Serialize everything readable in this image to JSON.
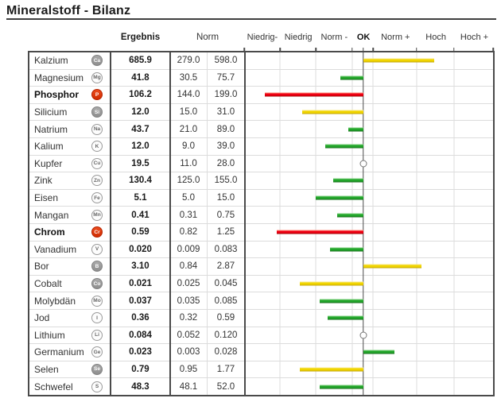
{
  "title": "Mineralstoff - Bilanz",
  "column_headers": {
    "ergebnis": "Ergebnis",
    "norm": "Norm"
  },
  "scale": {
    "labels": [
      {
        "label": "Niedrig-",
        "center_pct": 7.3,
        "bold": false
      },
      {
        "label": "Niedrig",
        "center_pct": 21.7,
        "bold": false
      },
      {
        "label": "Norm -",
        "center_pct": 36.1,
        "bold": false
      },
      {
        "label": "OK",
        "center_pct": 47.8,
        "bold": true
      },
      {
        "label": "Norm +",
        "center_pct": 60.6,
        "bold": false
      },
      {
        "label": "Hoch",
        "center_pct": 76.8,
        "bold": false
      },
      {
        "label": "Hoch +",
        "center_pct": 92.2,
        "bold": false
      }
    ],
    "gridline_pcts": [
      14.5,
      28.8,
      43.4,
      51.8,
      69.3,
      84.3
    ],
    "ok_line_pct": 47.8,
    "tick_pcts": [
      0,
      14.5,
      28.8,
      43.4,
      47.8,
      51.8,
      69.3,
      84.3,
      100
    ]
  },
  "colors": {
    "green": "#22a52a",
    "green_light": "#7fd07f",
    "green_dark": "#156e1a",
    "yellow": "#f0d400",
    "yellow_light": "#f8ea85",
    "yellow_dark": "#c2a500",
    "red": "#ee0013",
    "red_light": "#ff9382",
    "red_dark": "#a30000",
    "icon_gray": "#9c9c9c",
    "icon_red": "#df3a12",
    "ok_line": "#4d4d4d"
  },
  "rows": [
    {
      "name": "Kalzium",
      "symbol": "Ca",
      "icon": "gray",
      "bold": false,
      "result": "685.9",
      "norm_low": "279.0",
      "norm_high": "598.0"
    },
    {
      "name": "Magnesium",
      "symbol": "Mg",
      "icon": "outline",
      "bold": false,
      "result": "41.8",
      "norm_low": "30.5",
      "norm_high": "75.7"
    },
    {
      "name": "Phosphor",
      "symbol": "P",
      "icon": "red",
      "bold": true,
      "result": "106.2",
      "norm_low": "144.0",
      "norm_high": "199.0"
    },
    {
      "name": "Silicium",
      "symbol": "Si",
      "icon": "gray",
      "bold": false,
      "result": "12.0",
      "norm_low": "15.0",
      "norm_high": "31.0"
    },
    {
      "name": "Natrium",
      "symbol": "Na",
      "icon": "outline",
      "bold": false,
      "result": "43.7",
      "norm_low": "21.0",
      "norm_high": "89.0"
    },
    {
      "name": "Kalium",
      "symbol": "K",
      "icon": "outline",
      "bold": false,
      "result": "12.0",
      "norm_low": "9.0",
      "norm_high": "39.0"
    },
    {
      "name": "Kupfer",
      "symbol": "Cu",
      "icon": "outline",
      "bold": false,
      "result": "19.5",
      "norm_low": "11.0",
      "norm_high": "28.0"
    },
    {
      "name": "Zink",
      "symbol": "Zn",
      "icon": "outline",
      "bold": false,
      "result": "130.4",
      "norm_low": "125.0",
      "norm_high": "155.0"
    },
    {
      "name": "Eisen",
      "symbol": "Fe",
      "icon": "outline",
      "bold": false,
      "result": "5.1",
      "norm_low": "5.0",
      "norm_high": "15.0"
    },
    {
      "name": "Mangan",
      "symbol": "Mn",
      "icon": "outline",
      "bold": false,
      "result": "0.41",
      "norm_low": "0.31",
      "norm_high": "0.75"
    },
    {
      "name": "Chrom",
      "symbol": "Cr",
      "icon": "red",
      "bold": true,
      "result": "0.59",
      "norm_low": "0.82",
      "norm_high": "1.25"
    },
    {
      "name": "Vanadium",
      "symbol": "V",
      "icon": "outline",
      "bold": false,
      "result": "0.020",
      "norm_low": "0.009",
      "norm_high": "0.083"
    },
    {
      "name": "Bor",
      "symbol": "B",
      "icon": "gray",
      "bold": false,
      "result": "3.10",
      "norm_low": "0.84",
      "norm_high": "2.87"
    },
    {
      "name": "Cobalt",
      "symbol": "Co",
      "icon": "gray",
      "bold": false,
      "result": "0.021",
      "norm_low": "0.025",
      "norm_high": "0.045"
    },
    {
      "name": "Molybdän",
      "symbol": "Mo",
      "icon": "outline",
      "bold": false,
      "result": "0.037",
      "norm_low": "0.035",
      "norm_high": "0.085"
    },
    {
      "name": "Jod",
      "symbol": "I",
      "icon": "outline",
      "bold": false,
      "result": "0.36",
      "norm_low": "0.32",
      "norm_high": "0.59"
    },
    {
      "name": "Lithium",
      "symbol": "Li",
      "icon": "outline",
      "bold": false,
      "result": "0.084",
      "norm_low": "0.052",
      "norm_high": "0.120"
    },
    {
      "name": "Germanium",
      "symbol": "Ge",
      "icon": "outline",
      "bold": false,
      "result": "0.023",
      "norm_low": "0.003",
      "norm_high": "0.028"
    },
    {
      "name": "Selen",
      "symbol": "Se",
      "icon": "gray",
      "bold": false,
      "result": "0.79",
      "norm_low": "0.95",
      "norm_high": "1.77"
    },
    {
      "name": "Schwefel",
      "symbol": "S",
      "icon": "outline",
      "bold": false,
      "result": "48.3",
      "norm_low": "48.1",
      "norm_high": "52.0"
    }
  ],
  "chart_data": {
    "type": "bar",
    "title": "Mineralstoff - Bilanz",
    "scale_categories": [
      "Niedrig-",
      "Niedrig",
      "Norm -",
      "OK",
      "Norm +",
      "Hoch",
      "Hoch +"
    ],
    "ok_line_pct": 47.8,
    "series": [
      {
        "element": "Kalzium",
        "result": 685.9,
        "norm": [
          279.0,
          598.0
        ],
        "status": "above-norm",
        "indicator": "bar",
        "color": "yellow",
        "from_pct": 47.8,
        "to_pct": 76.4
      },
      {
        "element": "Magnesium",
        "result": 41.8,
        "norm": [
          30.5,
          75.7
        ],
        "status": "ok",
        "indicator": "bar",
        "color": "green",
        "from_pct": 38.7,
        "to_pct": 47.8
      },
      {
        "element": "Phosphor",
        "result": 106.2,
        "norm": [
          144.0,
          199.0
        ],
        "status": "low",
        "indicator": "bar",
        "color": "red",
        "from_pct": 8.3,
        "to_pct": 47.8
      },
      {
        "element": "Silicium",
        "result": 12.0,
        "norm": [
          15.0,
          31.0
        ],
        "status": "below-norm",
        "indicator": "bar",
        "color": "yellow",
        "from_pct": 23.2,
        "to_pct": 47.8
      },
      {
        "element": "Natrium",
        "result": 43.7,
        "norm": [
          21.0,
          89.0
        ],
        "status": "ok",
        "indicator": "bar",
        "color": "green",
        "from_pct": 41.9,
        "to_pct": 47.8
      },
      {
        "element": "Kalium",
        "result": 12.0,
        "norm": [
          9.0,
          39.0
        ],
        "status": "ok",
        "indicator": "bar",
        "color": "green",
        "from_pct": 32.7,
        "to_pct": 47.8
      },
      {
        "element": "Kupfer",
        "result": 19.5,
        "norm": [
          11.0,
          28.0
        ],
        "status": "ok",
        "indicator": "dot",
        "pos_pct": 47.8
      },
      {
        "element": "Zink",
        "result": 130.4,
        "norm": [
          125.0,
          155.0
        ],
        "status": "ok",
        "indicator": "bar",
        "color": "green",
        "from_pct": 35.9,
        "to_pct": 47.8
      },
      {
        "element": "Eisen",
        "result": 5.1,
        "norm": [
          5.0,
          15.0
        ],
        "status": "ok",
        "indicator": "bar",
        "color": "green",
        "from_pct": 28.9,
        "to_pct": 47.8
      },
      {
        "element": "Mangan",
        "result": 0.41,
        "norm": [
          0.31,
          0.75
        ],
        "status": "ok",
        "indicator": "bar",
        "color": "green",
        "from_pct": 37.5,
        "to_pct": 47.8
      },
      {
        "element": "Chrom",
        "result": 0.59,
        "norm": [
          0.82,
          1.25
        ],
        "status": "low",
        "indicator": "bar",
        "color": "red",
        "from_pct": 13.0,
        "to_pct": 47.8
      },
      {
        "element": "Vanadium",
        "result": 0.02,
        "norm": [
          0.009,
          0.083
        ],
        "status": "ok",
        "indicator": "bar",
        "color": "green",
        "from_pct": 34.6,
        "to_pct": 47.8
      },
      {
        "element": "Bor",
        "result": 3.1,
        "norm": [
          0.84,
          2.87
        ],
        "status": "above-norm",
        "indicator": "bar",
        "color": "yellow",
        "from_pct": 47.8,
        "to_pct": 71.4
      },
      {
        "element": "Cobalt",
        "result": 0.021,
        "norm": [
          0.025,
          0.045
        ],
        "status": "below-norm",
        "indicator": "bar",
        "color": "yellow",
        "from_pct": 22.5,
        "to_pct": 47.8
      },
      {
        "element": "Molybdän",
        "result": 0.037,
        "norm": [
          0.035,
          0.085
        ],
        "status": "ok",
        "indicator": "bar",
        "color": "green",
        "from_pct": 30.5,
        "to_pct": 47.8
      },
      {
        "element": "Jod",
        "result": 0.36,
        "norm": [
          0.32,
          0.59
        ],
        "status": "ok",
        "indicator": "bar",
        "color": "green",
        "from_pct": 33.7,
        "to_pct": 47.8
      },
      {
        "element": "Lithium",
        "result": 0.084,
        "norm": [
          0.052,
          0.12
        ],
        "status": "ok",
        "indicator": "dot",
        "pos_pct": 47.8
      },
      {
        "element": "Germanium",
        "result": 0.023,
        "norm": [
          0.003,
          0.028
        ],
        "status": "ok",
        "indicator": "bar",
        "color": "green",
        "from_pct": 47.8,
        "to_pct": 60.3
      },
      {
        "element": "Selen",
        "result": 0.79,
        "norm": [
          0.95,
          1.77
        ],
        "status": "below-norm",
        "indicator": "bar",
        "color": "yellow",
        "from_pct": 22.5,
        "to_pct": 47.8
      },
      {
        "element": "Schwefel",
        "result": 48.3,
        "norm": [
          48.1,
          52.0
        ],
        "status": "ok",
        "indicator": "bar",
        "color": "green",
        "from_pct": 30.5,
        "to_pct": 47.8
      }
    ]
  }
}
